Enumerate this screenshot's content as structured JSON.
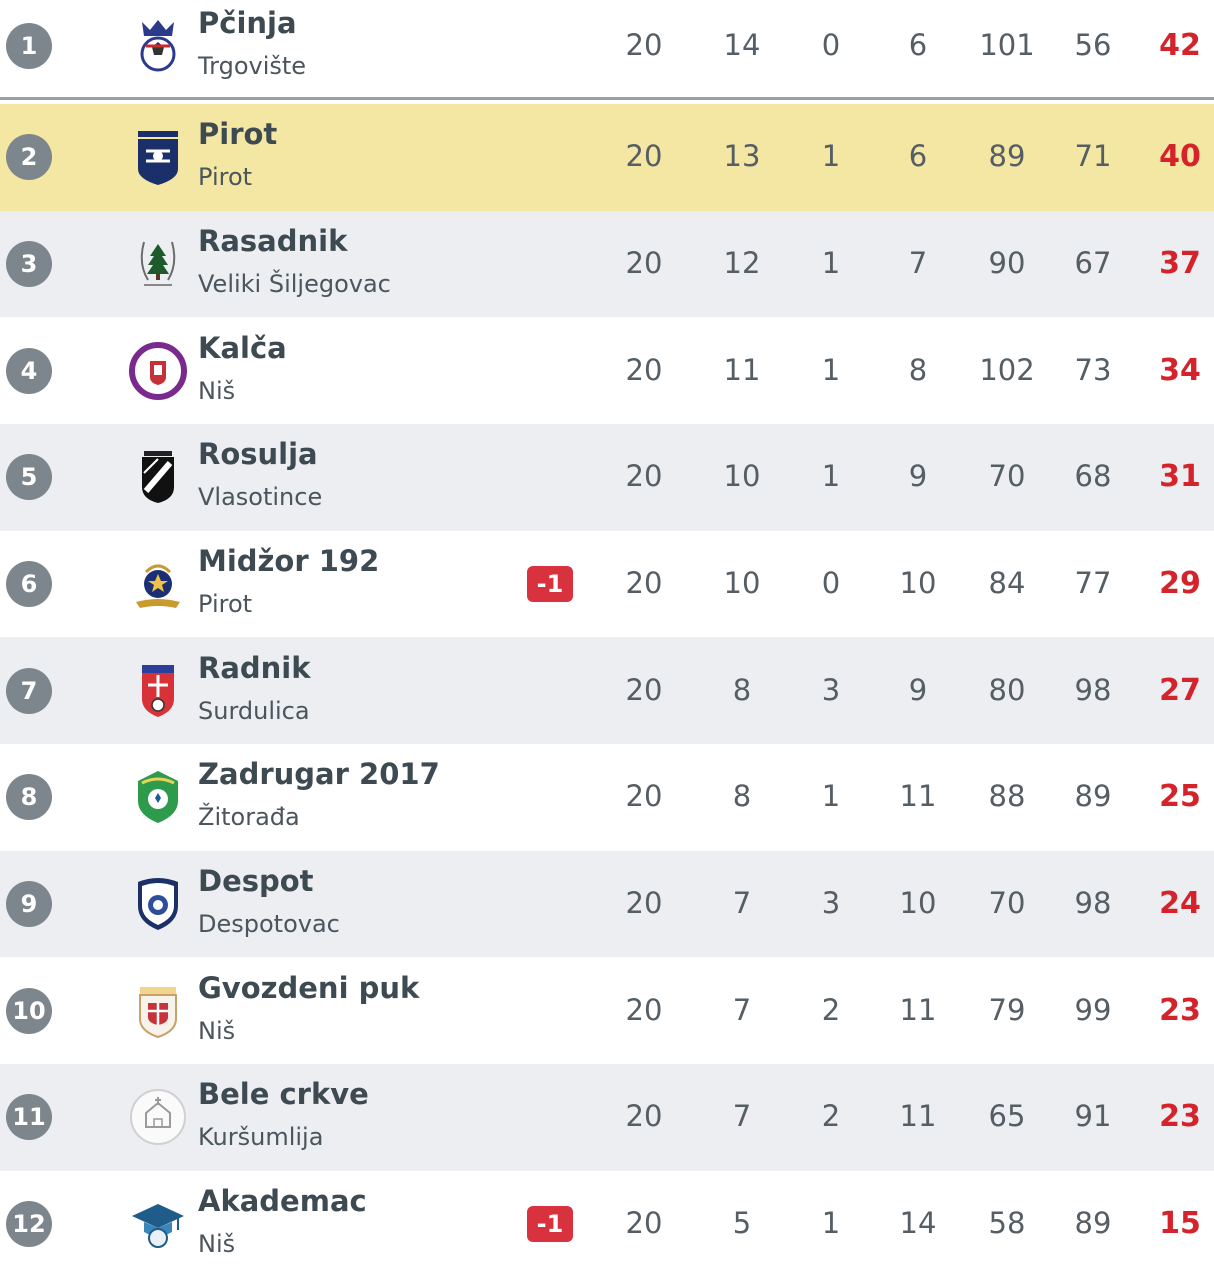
{
  "standings": [
    {
      "rank": "1",
      "name": "Pčinja",
      "city": "Trgovište",
      "penalty": "",
      "played": "20",
      "won": "14",
      "drawn": "0",
      "lost": "6",
      "gf": "101",
      "ga": "56",
      "points": "42",
      "logo": "pcinja-crest-icon"
    },
    {
      "rank": "2",
      "name": "Pirot",
      "city": "Pirot",
      "penalty": "",
      "played": "20",
      "won": "13",
      "drawn": "1",
      "lost": "6",
      "gf": "89",
      "ga": "71",
      "points": "40",
      "logo": "pirot-crest-icon"
    },
    {
      "rank": "3",
      "name": "Rasadnik",
      "city": "Veliki Šiljegovac",
      "penalty": "",
      "played": "20",
      "won": "12",
      "drawn": "1",
      "lost": "7",
      "gf": "90",
      "ga": "67",
      "points": "37",
      "logo": "rasadnik-crest-icon"
    },
    {
      "rank": "4",
      "name": "Kalča",
      "city": "Niš",
      "penalty": "",
      "played": "20",
      "won": "11",
      "drawn": "1",
      "lost": "8",
      "gf": "102",
      "ga": "73",
      "points": "34",
      "logo": "kalca-crest-icon"
    },
    {
      "rank": "5",
      "name": "Rosulja",
      "city": "Vlasotince",
      "penalty": "",
      "played": "20",
      "won": "10",
      "drawn": "1",
      "lost": "9",
      "gf": "70",
      "ga": "68",
      "points": "31",
      "logo": "rosulja-crest-icon"
    },
    {
      "rank": "6",
      "name": "Midžor 192",
      "city": "Pirot",
      "penalty": "-1",
      "played": "20",
      "won": "10",
      "drawn": "0",
      "lost": "10",
      "gf": "84",
      "ga": "77",
      "points": "29",
      "logo": "midzor-crest-icon"
    },
    {
      "rank": "7",
      "name": "Radnik",
      "city": "Surdulica",
      "penalty": "",
      "played": "20",
      "won": "8",
      "drawn": "3",
      "lost": "9",
      "gf": "80",
      "ga": "98",
      "points": "27",
      "logo": "radnik-crest-icon"
    },
    {
      "rank": "8",
      "name": "Zadrugar 2017",
      "city": "Žitorađa",
      "penalty": "",
      "played": "20",
      "won": "8",
      "drawn": "1",
      "lost": "11",
      "gf": "88",
      "ga": "89",
      "points": "25",
      "logo": "zadrugar-crest-icon"
    },
    {
      "rank": "9",
      "name": "Despot",
      "city": "Despotovac",
      "penalty": "",
      "played": "20",
      "won": "7",
      "drawn": "3",
      "lost": "10",
      "gf": "70",
      "ga": "98",
      "points": "24",
      "logo": "despot-crest-icon"
    },
    {
      "rank": "10",
      "name": "Gvozdeni puk",
      "city": "Niš",
      "penalty": "",
      "played": "20",
      "won": "7",
      "drawn": "2",
      "lost": "11",
      "gf": "79",
      "ga": "99",
      "points": "23",
      "logo": "gvozdeni-puk-crest-icon"
    },
    {
      "rank": "11",
      "name": "Bele crkve",
      "city": "Kuršumlija",
      "penalty": "",
      "played": "20",
      "won": "7",
      "drawn": "2",
      "lost": "11",
      "gf": "65",
      "ga": "91",
      "points": "23",
      "logo": "bele-crkve-crest-icon"
    },
    {
      "rank": "12",
      "name": "Akademac",
      "city": "Niš",
      "penalty": "-1",
      "played": "20",
      "won": "5",
      "drawn": "1",
      "lost": "14",
      "gf": "58",
      "ga": "89",
      "points": "15",
      "logo": "akademac-crest-icon"
    }
  ],
  "colors": {
    "rank_badge": "#7c868c",
    "highlight_row": "#f3e7a3",
    "alt_row": "#eceef1",
    "points": "#d4232b",
    "penalty_badge": "#d9323f"
  }
}
